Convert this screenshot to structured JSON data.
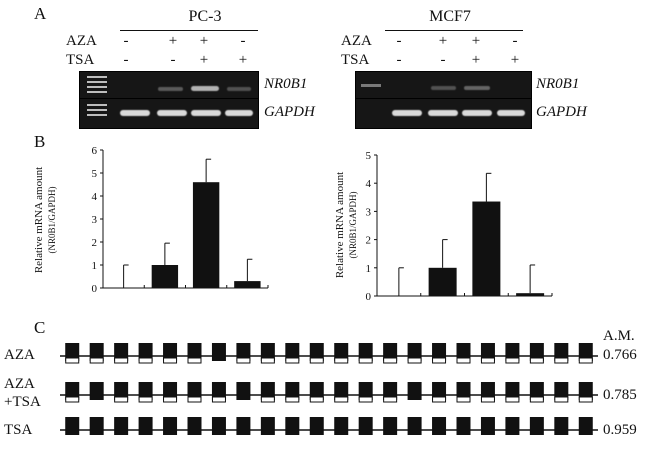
{
  "panels": {
    "a": "A",
    "b": "B",
    "c": "C"
  },
  "gels": [
    {
      "cell_line": "PC-3",
      "treatments": [
        {
          "label": "AZA",
          "signs": [
            "-",
            "+",
            "+",
            "-"
          ]
        },
        {
          "label": "TSA",
          "signs": [
            "-",
            "-",
            "+",
            "+"
          ]
        }
      ],
      "genes": [
        "NR0B1",
        "GAPDH"
      ]
    },
    {
      "cell_line": "MCF7",
      "treatments": [
        {
          "label": "AZA",
          "signs": [
            "-",
            "+",
            "+",
            "-"
          ]
        },
        {
          "label": "TSA",
          "signs": [
            "-",
            "-",
            "+",
            "+"
          ]
        }
      ],
      "genes": [
        "NR0B1",
        "GAPDH"
      ]
    }
  ],
  "chart_data": [
    {
      "type": "bar",
      "ylabel": "Relative mRNA amount",
      "ylabel_sub": "(NR0B1/GAPDH)",
      "ylim": [
        0,
        6
      ],
      "yticks": [
        "0",
        "1",
        "2",
        "3",
        "4",
        "5",
        "6"
      ],
      "values": [
        0,
        1.0,
        4.6,
        0.3
      ],
      "errors": [
        1.0,
        0.95,
        1.0,
        0.95
      ],
      "bar_color": "#111111"
    },
    {
      "type": "bar",
      "ylabel": "Relative mRNA amount",
      "ylabel_sub": "(NR0B1/GAPDH)",
      "ylim": [
        0,
        5
      ],
      "yticks": [
        "0",
        "1",
        "2",
        "3",
        "4",
        "5"
      ],
      "values": [
        0,
        1.0,
        3.35,
        0.1
      ],
      "errors": [
        1.0,
        1.0,
        1.0,
        1.0
      ],
      "bar_color": "#111111"
    }
  ],
  "methylation": {
    "header": "A.M.",
    "rows": [
      {
        "label_lines": [
          "AZA"
        ],
        "value": "0.766",
        "pattern": [
          0,
          0,
          0,
          0,
          0,
          0,
          1,
          0,
          0,
          0,
          0,
          0,
          0,
          0,
          0,
          0,
          0,
          0,
          0,
          0,
          0,
          0
        ]
      },
      {
        "label_lines": [
          "AZA",
          "+TSA"
        ],
        "value": "0.785",
        "pattern": [
          0,
          1,
          0,
          0,
          0,
          0,
          0,
          1,
          0,
          0,
          0,
          0,
          0,
          0,
          1,
          0,
          0,
          0,
          0,
          0,
          0,
          0
        ]
      },
      {
        "label_lines": [
          "TSA"
        ],
        "value": "0.959",
        "pattern": [
          1,
          1,
          1,
          1,
          1,
          1,
          1,
          1,
          1,
          1,
          1,
          1,
          1,
          1,
          1,
          1,
          1,
          1,
          1,
          1,
          1,
          1
        ]
      }
    ]
  }
}
